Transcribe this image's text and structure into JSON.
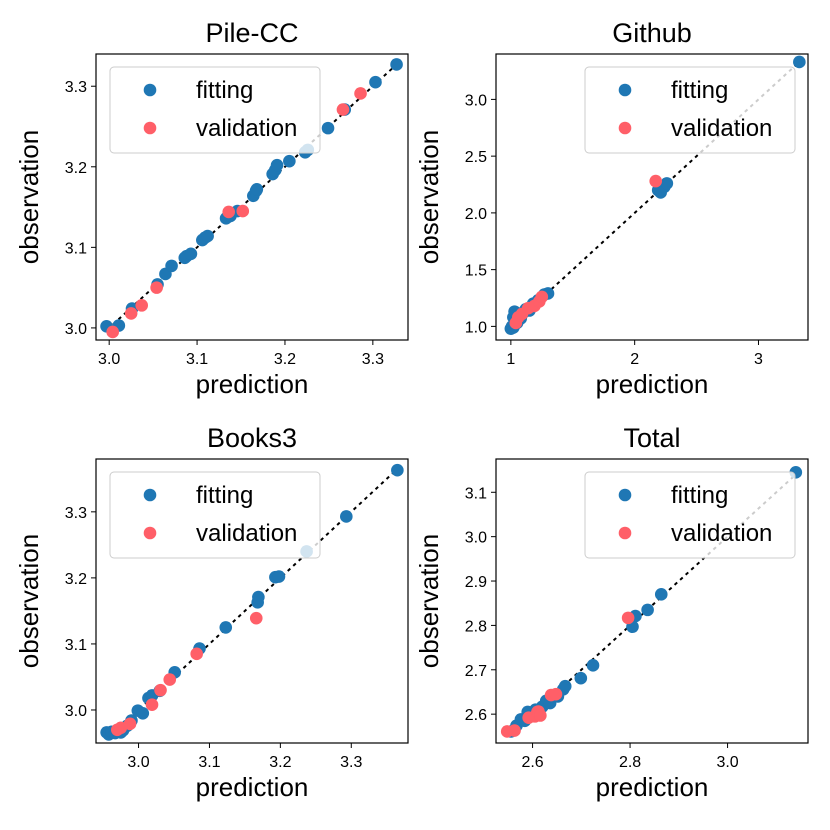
{
  "chart_data": [
    {
      "type": "scatter",
      "title": "Pile-CC",
      "xlabel": "prediction",
      "ylabel": "observation",
      "xlim": [
        2.985,
        3.34
      ],
      "ylim": [
        2.985,
        3.34
      ],
      "xticks": [
        3.0,
        3.1,
        3.2,
        3.3
      ],
      "yticks": [
        3.0,
        3.1,
        3.2,
        3.3
      ],
      "xtick_labels": [
        "3.0",
        "3.1",
        "3.2",
        "3.3"
      ],
      "ytick_labels": [
        "3.0",
        "3.1",
        "3.2",
        "3.3"
      ],
      "diagonal": [
        2.998,
        3.33
      ],
      "legend_placement": "upper-left",
      "series": [
        {
          "name": "fitting",
          "color": "#1f77b4",
          "points": [
            [
              2.997,
              3.002
            ],
            [
              3.011,
              3.003
            ],
            [
              3.026,
              3.024
            ],
            [
              3.055,
              3.054
            ],
            [
              3.064,
              3.067
            ],
            [
              3.071,
              3.077
            ],
            [
              3.086,
              3.087
            ],
            [
              3.088,
              3.089
            ],
            [
              3.093,
              3.092
            ],
            [
              3.106,
              3.109
            ],
            [
              3.109,
              3.112
            ],
            [
              3.112,
              3.114
            ],
            [
              3.133,
              3.136
            ],
            [
              3.138,
              3.139
            ],
            [
              3.146,
              3.145
            ],
            [
              3.164,
              3.164
            ],
            [
              3.167,
              3.17
            ],
            [
              3.168,
              3.172
            ],
            [
              3.186,
              3.191
            ],
            [
              3.189,
              3.196
            ],
            [
              3.191,
              3.202
            ],
            [
              3.205,
              3.207
            ],
            [
              3.223,
              3.218
            ],
            [
              3.226,
              3.221
            ],
            [
              3.249,
              3.248
            ],
            [
              3.268,
              3.271
            ],
            [
              3.303,
              3.305
            ],
            [
              3.327,
              3.327
            ]
          ]
        },
        {
          "name": "validation",
          "color": "#ff5f68",
          "points": [
            [
              3.004,
              2.995
            ],
            [
              3.025,
              3.018
            ],
            [
              3.037,
              3.028
            ],
            [
              3.054,
              3.05
            ],
            [
              3.136,
              3.144
            ],
            [
              3.152,
              3.145
            ],
            [
              3.266,
              3.271
            ],
            [
              3.286,
              3.291
            ]
          ]
        }
      ]
    },
    {
      "type": "scatter",
      "title": "Github",
      "xlabel": "prediction",
      "ylabel": "observation",
      "xlim": [
        0.88,
        3.4
      ],
      "ylim": [
        0.88,
        3.4
      ],
      "xticks": [
        1,
        2,
        3
      ],
      "yticks": [
        1.0,
        1.5,
        2.0,
        2.5,
        3.0
      ],
      "xtick_labels": [
        "1",
        "2",
        "3"
      ],
      "ytick_labels": [
        "1.0",
        "1.5",
        "2.0",
        "2.5",
        "3.0"
      ],
      "diagonal": [
        0.97,
        3.33
      ],
      "legend_placement": "upper-right",
      "series": [
        {
          "name": "fitting",
          "color": "#1f77b4",
          "points": [
            [
              1.0,
              0.98
            ],
            [
              1.01,
              1.0
            ],
            [
              1.02,
              0.99
            ],
            [
              1.03,
              1.02
            ],
            [
              1.04,
              1.05
            ],
            [
              1.05,
              1.03
            ],
            [
              1.02,
              1.08
            ],
            [
              1.06,
              1.1
            ],
            [
              1.08,
              1.07
            ],
            [
              1.1,
              1.12
            ],
            [
              1.03,
              1.13
            ],
            [
              1.12,
              1.15
            ],
            [
              1.15,
              1.14
            ],
            [
              1.18,
              1.2
            ],
            [
              1.22,
              1.23
            ],
            [
              1.27,
              1.28
            ],
            [
              1.3,
              1.29
            ],
            [
              2.19,
              2.2
            ],
            [
              2.21,
              2.18
            ],
            [
              2.24,
              2.23
            ],
            [
              2.26,
              2.26
            ],
            [
              3.33,
              3.33
            ]
          ]
        },
        {
          "name": "validation",
          "color": "#ff5f68",
          "points": [
            [
              1.04,
              1.03
            ],
            [
              1.06,
              1.08
            ],
            [
              1.09,
              1.11
            ],
            [
              1.14,
              1.16
            ],
            [
              1.19,
              1.18
            ],
            [
              1.23,
              1.22
            ],
            [
              1.25,
              1.26
            ],
            [
              2.17,
              2.28
            ]
          ]
        }
      ]
    },
    {
      "type": "scatter",
      "title": "Books3",
      "xlabel": "prediction",
      "ylabel": "observation",
      "xlim": [
        2.94,
        3.38
      ],
      "ylim": [
        2.95,
        3.38
      ],
      "xticks": [
        3.0,
        3.1,
        3.2,
        3.3
      ],
      "yticks": [
        3.0,
        3.1,
        3.2,
        3.3
      ],
      "xtick_labels": [
        "3.0",
        "3.1",
        "3.2",
        "3.3"
      ],
      "ytick_labels": [
        "3.0",
        "3.1",
        "3.2",
        "3.3"
      ],
      "diagonal": [
        2.955,
        3.365
      ],
      "legend_placement": "upper-left",
      "series": [
        {
          "name": "fitting",
          "color": "#1f77b4",
          "points": [
            [
              2.955,
              2.966
            ],
            [
              2.958,
              2.963
            ],
            [
              2.962,
              2.967
            ],
            [
              2.967,
              2.965
            ],
            [
              2.97,
              2.968
            ],
            [
              2.975,
              2.966
            ],
            [
              2.978,
              2.969
            ],
            [
              2.984,
              2.976
            ],
            [
              2.99,
              2.984
            ],
            [
              2.999,
              2.999
            ],
            [
              3.006,
              2.995
            ],
            [
              3.014,
              3.018
            ],
            [
              3.019,
              3.022
            ],
            [
              3.03,
              3.029
            ],
            [
              3.051,
              3.057
            ],
            [
              3.086,
              3.093
            ],
            [
              3.123,
              3.125
            ],
            [
              3.168,
              3.163
            ],
            [
              3.169,
              3.171
            ],
            [
              3.193,
              3.201
            ],
            [
              3.198,
              3.202
            ],
            [
              3.237,
              3.24
            ],
            [
              3.293,
              3.293
            ],
            [
              3.365,
              3.363
            ]
          ]
        },
        {
          "name": "validation",
          "color": "#ff5f68",
          "points": [
            [
              2.97,
              2.97
            ],
            [
              2.975,
              2.973
            ],
            [
              2.988,
              2.979
            ],
            [
              3.019,
              3.008
            ],
            [
              3.031,
              3.03
            ],
            [
              3.044,
              3.046
            ],
            [
              3.082,
              3.085
            ],
            [
              3.166,
              3.139
            ]
          ]
        }
      ]
    },
    {
      "type": "scatter",
      "title": "Total",
      "xlabel": "prediction",
      "ylabel": "observation",
      "xlim": [
        2.525,
        3.165
      ],
      "ylim": [
        2.535,
        3.175
      ],
      "xticks": [
        2.6,
        2.8,
        3.0
      ],
      "yticks": [
        2.6,
        2.7,
        2.8,
        2.9,
        3.0,
        3.1
      ],
      "xtick_labels": [
        "2.6",
        "2.8",
        "3.0"
      ],
      "ytick_labels": [
        "2.6",
        "2.7",
        "2.8",
        "2.9",
        "3.0",
        "3.1"
      ],
      "diagonal": [
        2.55,
        3.14
      ],
      "legend_placement": "upper-right",
      "series": [
        {
          "name": "fitting",
          "color": "#1f77b4",
          "points": [
            [
              2.556,
              2.561
            ],
            [
              2.567,
              2.574
            ],
            [
              2.576,
              2.588
            ],
            [
              2.584,
              2.585
            ],
            [
              2.59,
              2.605
            ],
            [
              2.598,
              2.597
            ],
            [
              2.606,
              2.61
            ],
            [
              2.613,
              2.608
            ],
            [
              2.62,
              2.617
            ],
            [
              2.628,
              2.63
            ],
            [
              2.636,
              2.625
            ],
            [
              2.64,
              2.639
            ],
            [
              2.652,
              2.64
            ],
            [
              2.663,
              2.656
            ],
            [
              2.667,
              2.663
            ],
            [
              2.699,
              2.681
            ],
            [
              2.724,
              2.71
            ],
            [
              2.805,
              2.797
            ],
            [
              2.811,
              2.821
            ],
            [
              2.836,
              2.835
            ],
            [
              2.864,
              2.87
            ],
            [
              3.14,
              3.145
            ]
          ]
        },
        {
          "name": "validation",
          "color": "#ff5f68",
          "points": [
            [
              2.548,
              2.561
            ],
            [
              2.563,
              2.563
            ],
            [
              2.592,
              2.592
            ],
            [
              2.605,
              2.595
            ],
            [
              2.61,
              2.605
            ],
            [
              2.612,
              2.606
            ],
            [
              2.616,
              2.597
            ],
            [
              2.638,
              2.643
            ],
            [
              2.648,
              2.645
            ],
            [
              2.796,
              2.817
            ]
          ]
        }
      ]
    }
  ]
}
